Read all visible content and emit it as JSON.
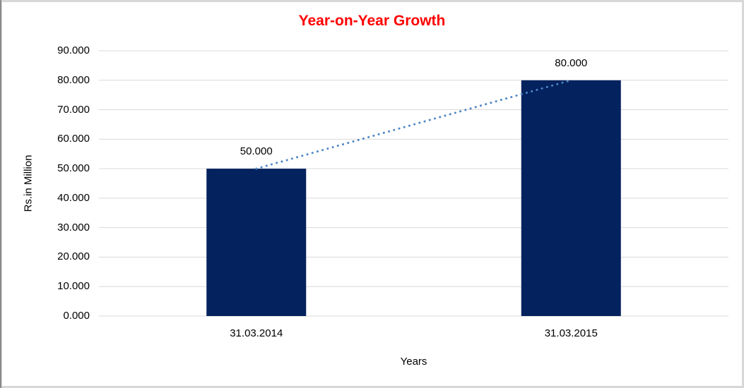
{
  "chart_data": {
    "type": "bar",
    "title": "Year-on-Year Growth",
    "title_color": "#ff0000",
    "categories": [
      "31.03.2014",
      "31.03.2015"
    ],
    "values": [
      50,
      80
    ],
    "data_labels": [
      "50.000",
      "80.000"
    ],
    "xlabel": "Years",
    "ylabel": "Rs.in Million",
    "ylim": [
      0,
      90
    ],
    "ytick_step": 10,
    "ytick_labels": [
      "0.000",
      "10.000",
      "20.000",
      "30.000",
      "40.000",
      "50.000",
      "60.000",
      "70.000",
      "80.000",
      "90.000"
    ],
    "grid": true,
    "legend": "none",
    "bar_color": "#03225e",
    "gridline_color": "#d9d9d9",
    "trendline": {
      "style": "dotted",
      "color": "#4f86c6",
      "from": "31.03.2014 top",
      "to": "31.03.2015 top"
    }
  }
}
